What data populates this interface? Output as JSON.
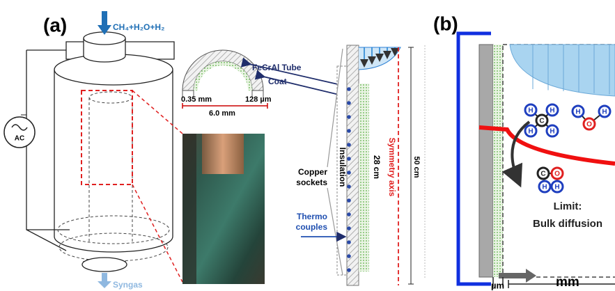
{
  "panel_a": {
    "label": "(a)",
    "feed": "CH₄+H₂O+H₂",
    "power": "AC",
    "product": "Syngas",
    "tube": {
      "material": "FeCrAl Tube",
      "coat": "Coat",
      "wall_thickness": "0.35 mm",
      "coat_thickness": "128 µm",
      "diameter": "6.0 mm"
    },
    "insulation": "Insulation",
    "coat_length": "28 cm",
    "sockets": "Copper sockets",
    "thermocouples": "Thermo couples",
    "axis": "Symmetry axis",
    "height": "50 cm"
  },
  "panel_b": {
    "label": "(b)",
    "molecules": [
      {
        "atoms": [
          "H",
          "H",
          "C",
          "H",
          "H"
        ]
      },
      {
        "atoms": [
          "H",
          "O",
          "H"
        ]
      },
      {
        "atoms": [
          "C",
          "O"
        ]
      },
      {
        "atoms": [
          "H",
          "H"
        ]
      }
    ],
    "note": [
      "Limit:",
      "Bulk diffusion"
    ],
    "scale": {
      "micro": "µm",
      "macro": "mm"
    }
  }
}
